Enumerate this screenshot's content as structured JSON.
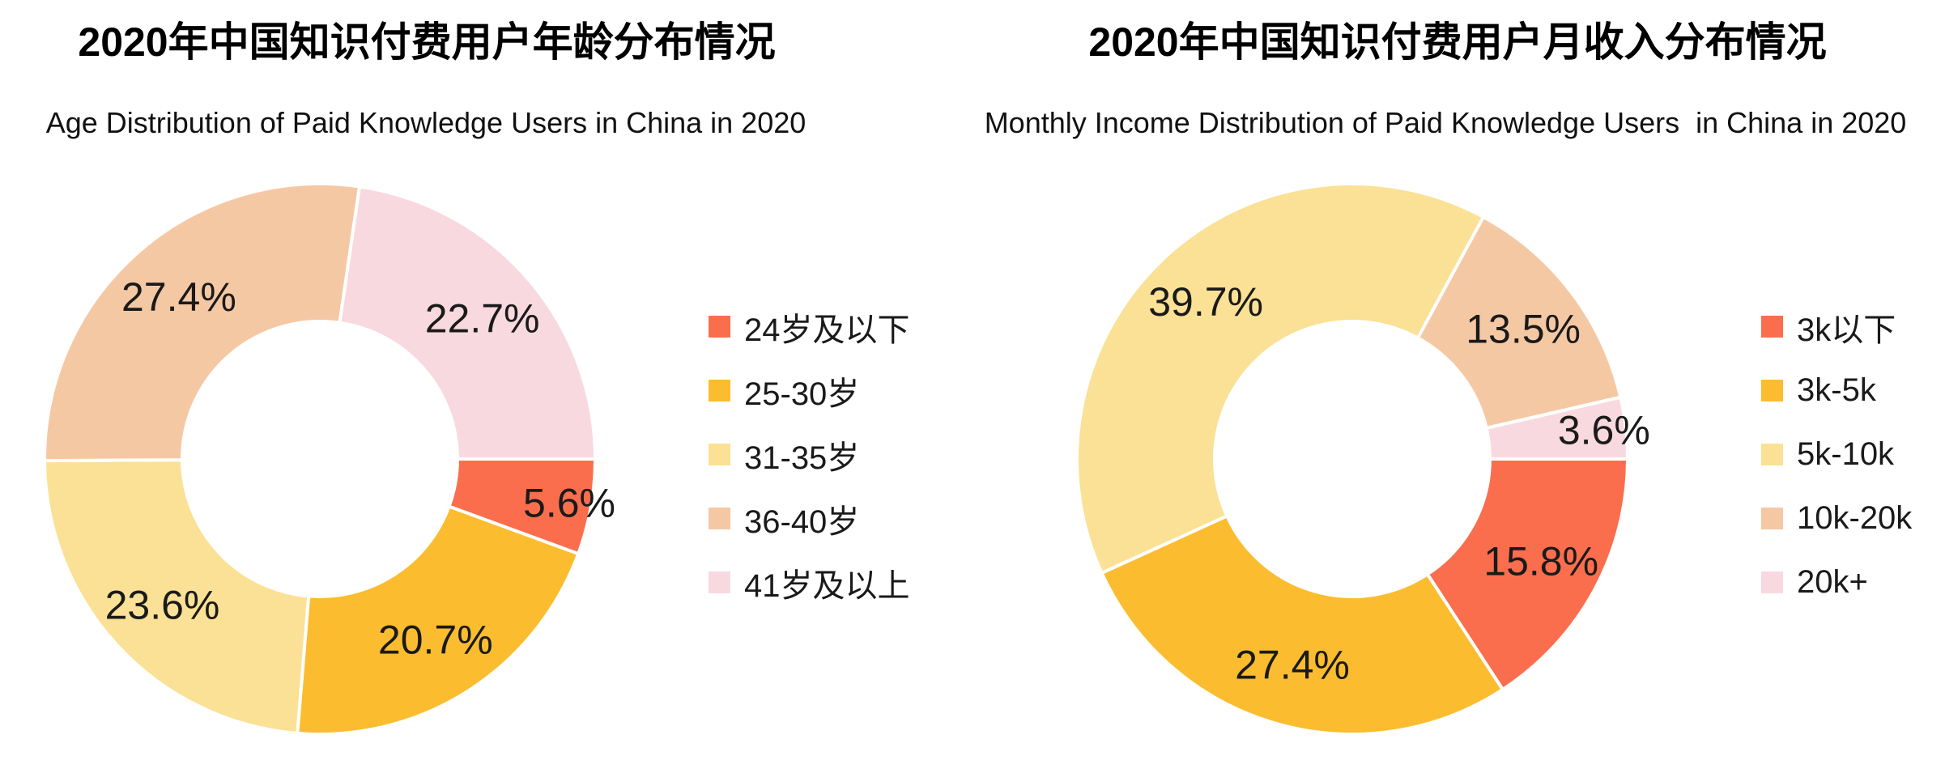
{
  "page": {
    "background": "#FFFFFF"
  },
  "chart_data": [
    {
      "type": "pie",
      "variant": "donut",
      "title": "2020年中国知识付费用户年龄分布情况",
      "subtitle": "Age Distribution of Paid Knowledge Users in China in 2020",
      "categories": [
        "24岁及以下",
        "25-30岁",
        "31-35岁",
        "36-40岁",
        "41岁及以上"
      ],
      "values": [
        5.6,
        20.7,
        23.6,
        27.4,
        22.7
      ],
      "percent_labels": [
        "5.6%",
        "20.7%",
        "23.6%",
        "27.4%",
        "22.7%"
      ],
      "colors": [
        "#FA6E4E",
        "#FBBD2F",
        "#FBE195",
        "#F5C8A4",
        "#F8D9DF"
      ],
      "slugs": [
        "age-under-24",
        "age-25-30",
        "age-31-35",
        "age-36-40",
        "age-41-plus"
      ],
      "inner_radius_ratio": 0.5,
      "start_angle_deg": 0,
      "direction": "clockwise",
      "legend_position": "right",
      "label_color": "#1A1A1A",
      "slice_border_color": "#FFFFFF"
    },
    {
      "type": "pie",
      "variant": "donut",
      "title": "2020年中国知识付费用户月收入分布情况",
      "subtitle": "Monthly Income Distribution of Paid Knowledge Users  in China in 2020",
      "categories": [
        "3k以下",
        "3k-5k",
        "5k-10k",
        "10k-20k",
        "20k+"
      ],
      "values": [
        15.8,
        27.4,
        39.7,
        13.5,
        3.6
      ],
      "percent_labels": [
        "15.8%",
        "27.4%",
        "39.7%",
        "13.5%",
        "3.6%"
      ],
      "colors": [
        "#FA6E4E",
        "#FBBD2F",
        "#FBE195",
        "#F5C8A4",
        "#F8D9DF"
      ],
      "slugs": [
        "income-under-3k",
        "income-3k-5k",
        "income-5k-10k",
        "income-10k-20k",
        "income-20k-plus"
      ],
      "inner_radius_ratio": 0.5,
      "start_angle_deg": 0,
      "direction": "clockwise",
      "legend_position": "right",
      "label_color": "#1A1A1A",
      "slice_border_color": "#FFFFFF"
    }
  ]
}
